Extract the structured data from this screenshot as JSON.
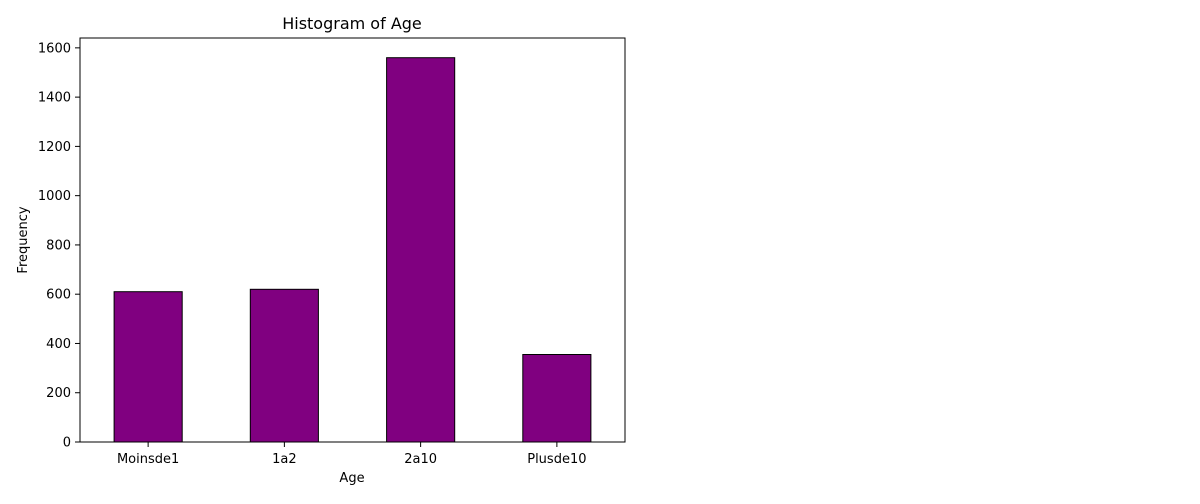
{
  "chart_data": {
    "type": "bar",
    "title": "Histogram of Age",
    "xlabel": "Age",
    "ylabel": "Frequency",
    "categories": [
      "Moinsde1",
      "1a2",
      "2a10",
      "Plusde10"
    ],
    "values": [
      610,
      620,
      1560,
      355
    ],
    "ylim": [
      0,
      1640
    ],
    "yticks": [
      0,
      200,
      400,
      600,
      800,
      1000,
      1200,
      1400,
      1600
    ],
    "grid": false,
    "bar_color": "#800080",
    "edge_color": "#000000"
  }
}
